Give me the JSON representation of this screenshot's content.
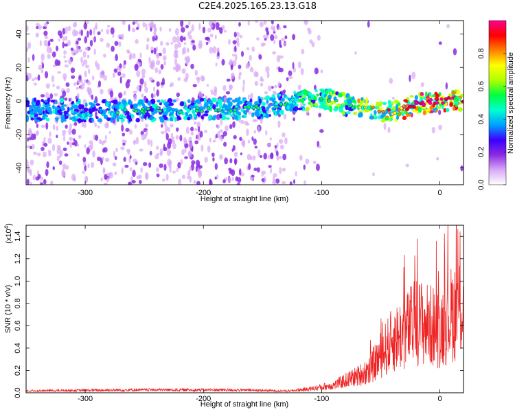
{
  "title": "C2E4.2025.165.23.13.G18",
  "chart_data": [
    {
      "type": "heatmap",
      "xlabel": "Height of straight line (km)",
      "ylabel": "Frequency (Hz)",
      "xlim": [
        -350,
        20
      ],
      "ylim": [
        -50,
        48
      ],
      "x_ticks": [
        -300,
        -200,
        -100,
        0
      ],
      "y_ticks": [
        -40,
        -20,
        0,
        20,
        40
      ],
      "colorbar": {
        "label": "Normalized spectral amplitude",
        "range": [
          0,
          1
        ],
        "ticks": [
          "0.0",
          "0.2",
          "0.4",
          "0.6",
          "0.8"
        ],
        "colors": [
          "#ffffff",
          "#d9a8f5",
          "#8a2be2",
          "#3b00ff",
          "#00a0ff",
          "#00ffd0",
          "#00ff40",
          "#b0ff00",
          "#ffff00",
          "#ff8000",
          "#ff0000",
          "#ff0090"
        ]
      },
      "ridge": [
        {
          "x": -350,
          "y": -5
        },
        {
          "x": -300,
          "y": -6
        },
        {
          "x": -270,
          "y": -6
        },
        {
          "x": -200,
          "y": -5
        },
        {
          "x": -150,
          "y": -4
        },
        {
          "x": -120,
          "y": 0
        },
        {
          "x": -100,
          "y": 2
        },
        {
          "x": -80,
          "y": -2
        },
        {
          "x": -60,
          "y": -4
        },
        {
          "x": -40,
          "y": -7
        },
        {
          "x": -20,
          "y": -2
        },
        {
          "x": 0,
          "y": 0
        },
        {
          "x": 20,
          "y": 1
        }
      ]
    },
    {
      "type": "line",
      "xlabel": "Height of straight line (km)",
      "ylabel": "SNR (10 * v/v)",
      "y_multiplier": "(x10",
      "y_multiplier_exp": "4",
      "y_multiplier_close": ")",
      "xlim": [
        -350,
        20
      ],
      "ylim": [
        0,
        1.5
      ],
      "x_ticks": [
        -300,
        -200,
        -100,
        0
      ],
      "y_ticks": [
        "0.0",
        "0.2",
        "0.4",
        "0.6",
        "0.8",
        "1.0",
        "1.2",
        "1.4"
      ],
      "color": "#ee2222",
      "envelope": [
        {
          "x": -350,
          "y": 0.02
        },
        {
          "x": -260,
          "y": 0.03
        },
        {
          "x": -180,
          "y": 0.03
        },
        {
          "x": -130,
          "y": 0.02
        },
        {
          "x": -110,
          "y": 0.05
        },
        {
          "x": -90,
          "y": 0.1
        },
        {
          "x": -80,
          "y": 0.16
        },
        {
          "x": -70,
          "y": 0.22
        },
        {
          "x": -60,
          "y": 0.3
        },
        {
          "x": -50,
          "y": 0.5
        },
        {
          "x": -40,
          "y": 0.7
        },
        {
          "x": -30,
          "y": 0.8
        },
        {
          "x": -20,
          "y": 0.95
        },
        {
          "x": -10,
          "y": 0.9
        },
        {
          "x": 0,
          "y": 0.85
        },
        {
          "x": 10,
          "y": 1.05
        },
        {
          "x": 20,
          "y": 1.2
        }
      ]
    }
  ]
}
